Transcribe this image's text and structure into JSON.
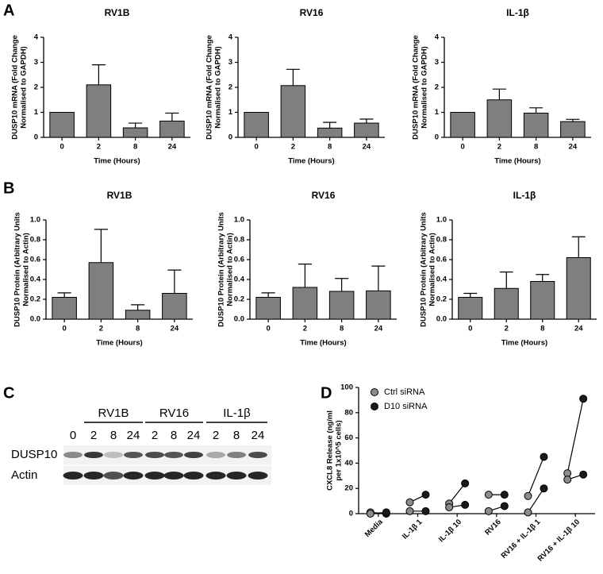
{
  "panel_labels": [
    "A",
    "B",
    "C",
    "D"
  ],
  "blot": {
    "groups": [
      "RV1B",
      "RV16",
      "IL-1β"
    ],
    "lanes": [
      "0",
      "2",
      "8",
      "24",
      "2",
      "8",
      "24",
      "2",
      "8",
      "24"
    ],
    "rows": [
      "DUSP10",
      "Actin"
    ]
  },
  "chart_data": [
    {
      "type": "bar",
      "title": "RV1B",
      "ylabel": [
        "DUSP10 mRNA (Fold Change",
        "Normalised to GAPDH)"
      ],
      "xlabel": "Time (Hours)",
      "categories": [
        "0",
        "2",
        "8",
        "24"
      ],
      "values": [
        1,
        2.1,
        0.38,
        0.65
      ],
      "errors": [
        0,
        0.8,
        0.19,
        0.32
      ],
      "color": "#7f7f7f",
      "ylim": [
        0,
        4
      ],
      "yticks": [
        0,
        1,
        2,
        3,
        4
      ]
    },
    {
      "type": "bar",
      "title": "RV16",
      "ylabel": [
        "DUSP10 mRNA (Fold Change",
        "Normalised to GAPDH)"
      ],
      "xlabel": "Time (Hours)",
      "categories": [
        "0",
        "2",
        "8",
        "24"
      ],
      "values": [
        1,
        2.07,
        0.37,
        0.57
      ],
      "errors": [
        0,
        0.65,
        0.23,
        0.16
      ],
      "color": "#7f7f7f",
      "ylim": [
        0,
        4
      ],
      "yticks": [
        0,
        1,
        2,
        3,
        4
      ]
    },
    {
      "type": "bar",
      "title": "IL-1β",
      "ylabel": [
        "DUSP10 mRNA (Fold Change",
        "Normalised to GAPDH)"
      ],
      "xlabel": "Time (Hours)",
      "categories": [
        "0",
        "2",
        "8",
        "24"
      ],
      "values": [
        1,
        1.5,
        0.97,
        0.63
      ],
      "errors": [
        0,
        0.43,
        0.21,
        0.09
      ],
      "color": "#7f7f7f",
      "ylim": [
        0,
        4
      ],
      "yticks": [
        0,
        1,
        2,
        3,
        4
      ]
    },
    {
      "type": "bar",
      "title": "RV1B",
      "ylabel": [
        "DUSP10 Protein (Arbitrary Units",
        "Normalised to Actin)"
      ],
      "xlabel": "Time (Hours)",
      "categories": [
        "0",
        "2",
        "8",
        "24"
      ],
      "values": [
        0.22,
        0.57,
        0.09,
        0.26
      ],
      "errors": [
        0.045,
        0.335,
        0.055,
        0.235
      ],
      "color": "#7f7f7f",
      "ylim": [
        0,
        1
      ],
      "yticks": [
        {
          "value": 0,
          "label": "0.0"
        },
        0.2,
        0.4,
        0.6,
        0.8,
        {
          "value": 1,
          "label": "1.0"
        }
      ]
    },
    {
      "type": "bar",
      "title": "RV16",
      "ylabel": [
        "DUSP10 Protein (Arbitrary Units",
        "Normalised to Actin)"
      ],
      "xlabel": "Time (Hours)",
      "categories": [
        "0",
        "2",
        "8",
        "24"
      ],
      "values": [
        0.22,
        0.32,
        0.28,
        0.285
      ],
      "errors": [
        0.045,
        0.235,
        0.13,
        0.25
      ],
      "color": "#7f7f7f",
      "ylim": [
        0,
        1
      ],
      "yticks": [
        {
          "value": 0,
          "label": "0.0"
        },
        0.2,
        0.4,
        0.6,
        0.8,
        {
          "value": 1,
          "label": "1.0"
        }
      ]
    },
    {
      "type": "bar",
      "title": "IL-1β",
      "ylabel": [
        "DUSP10 Protein (Arbitrary Units",
        "Normalised to Actin)"
      ],
      "xlabel": "Time (Hours)",
      "categories": [
        "0",
        "2",
        "8",
        "24"
      ],
      "values": [
        0.22,
        0.31,
        0.38,
        0.62
      ],
      "errors": [
        0.04,
        0.165,
        0.07,
        0.21
      ],
      "color": "#7f7f7f",
      "ylim": [
        0,
        1
      ],
      "yticks": [
        {
          "value": 0,
          "label": "0.0"
        },
        0.2,
        0.4,
        0.6,
        0.8,
        {
          "value": 1,
          "label": "1.0"
        }
      ]
    },
    {
      "type": "scatter",
      "ylabel": [
        "CXCL8 Release (ng/ml",
        "per 1x10^5 cells)"
      ],
      "categories": [
        "Media",
        "IL-1β 1",
        "IL-1β 10",
        "RV16",
        "RV16 + IL-1β 1",
        "RV16 + IL-1β 10"
      ],
      "series": [
        {
          "name": "Ctrl siRNA",
          "color": "#8c8c8c",
          "values": [
            [
              1,
              0
            ],
            [
              9,
              2
            ],
            [
              8,
              5
            ],
            [
              15,
              2
            ],
            [
              14,
              1
            ],
            [
              32,
              27
            ]
          ]
        },
        {
          "name": "D10 siRNA",
          "color": "#1a1a1a",
          "values": [
            [
              0,
              1
            ],
            [
              15,
              2
            ],
            [
              24,
              7
            ],
            [
              15,
              6
            ],
            [
              45,
              20
            ],
            [
              91,
              31
            ]
          ]
        }
      ],
      "ylim": [
        0,
        100
      ],
      "yticks": [
        0,
        20,
        40,
        60,
        80,
        100
      ],
      "legend": "upper left"
    }
  ]
}
